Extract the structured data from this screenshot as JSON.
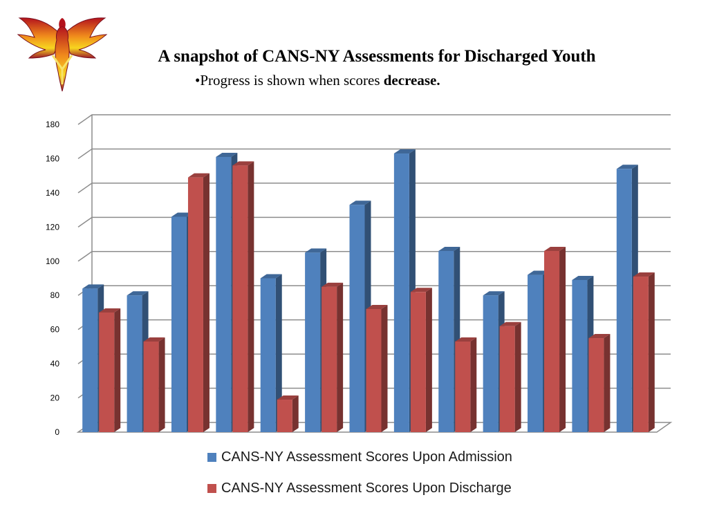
{
  "slide": {
    "title": "A snapshot of CANS-NY Assessments for Discharged Youth",
    "subtitle_prefix": "•Progress is shown when scores ",
    "subtitle_emphasis": "decrease."
  },
  "colors": {
    "admission": "#4f81bd",
    "discharge": "#c0504d",
    "gridline": "#8c8c8c"
  },
  "logo": {
    "icon": "phoenix-logo-icon"
  },
  "chart_data": {
    "type": "bar",
    "title": "",
    "xlabel": "",
    "ylabel": "",
    "ylim": [
      0,
      180
    ],
    "yticks": [
      0,
      20,
      40,
      60,
      80,
      100,
      120,
      140,
      160,
      180
    ],
    "grid": true,
    "legend_position": "bottom",
    "categories": [
      "",
      "",
      "",
      "",
      "",
      "",
      "",
      "",
      "",
      "",
      "",
      "",
      ""
    ],
    "series": [
      {
        "name": "CANS-NY Assessment Scores Upon Admission",
        "values": [
          84,
          80,
          126,
          161,
          90,
          105,
          133,
          163,
          106,
          80,
          92,
          89,
          154
        ]
      },
      {
        "name": "CANS-NY Assessment Scores Upon Discharge",
        "values": [
          70,
          53,
          149,
          156,
          19,
          85,
          72,
          82,
          53,
          62,
          106,
          55,
          91
        ]
      }
    ]
  }
}
